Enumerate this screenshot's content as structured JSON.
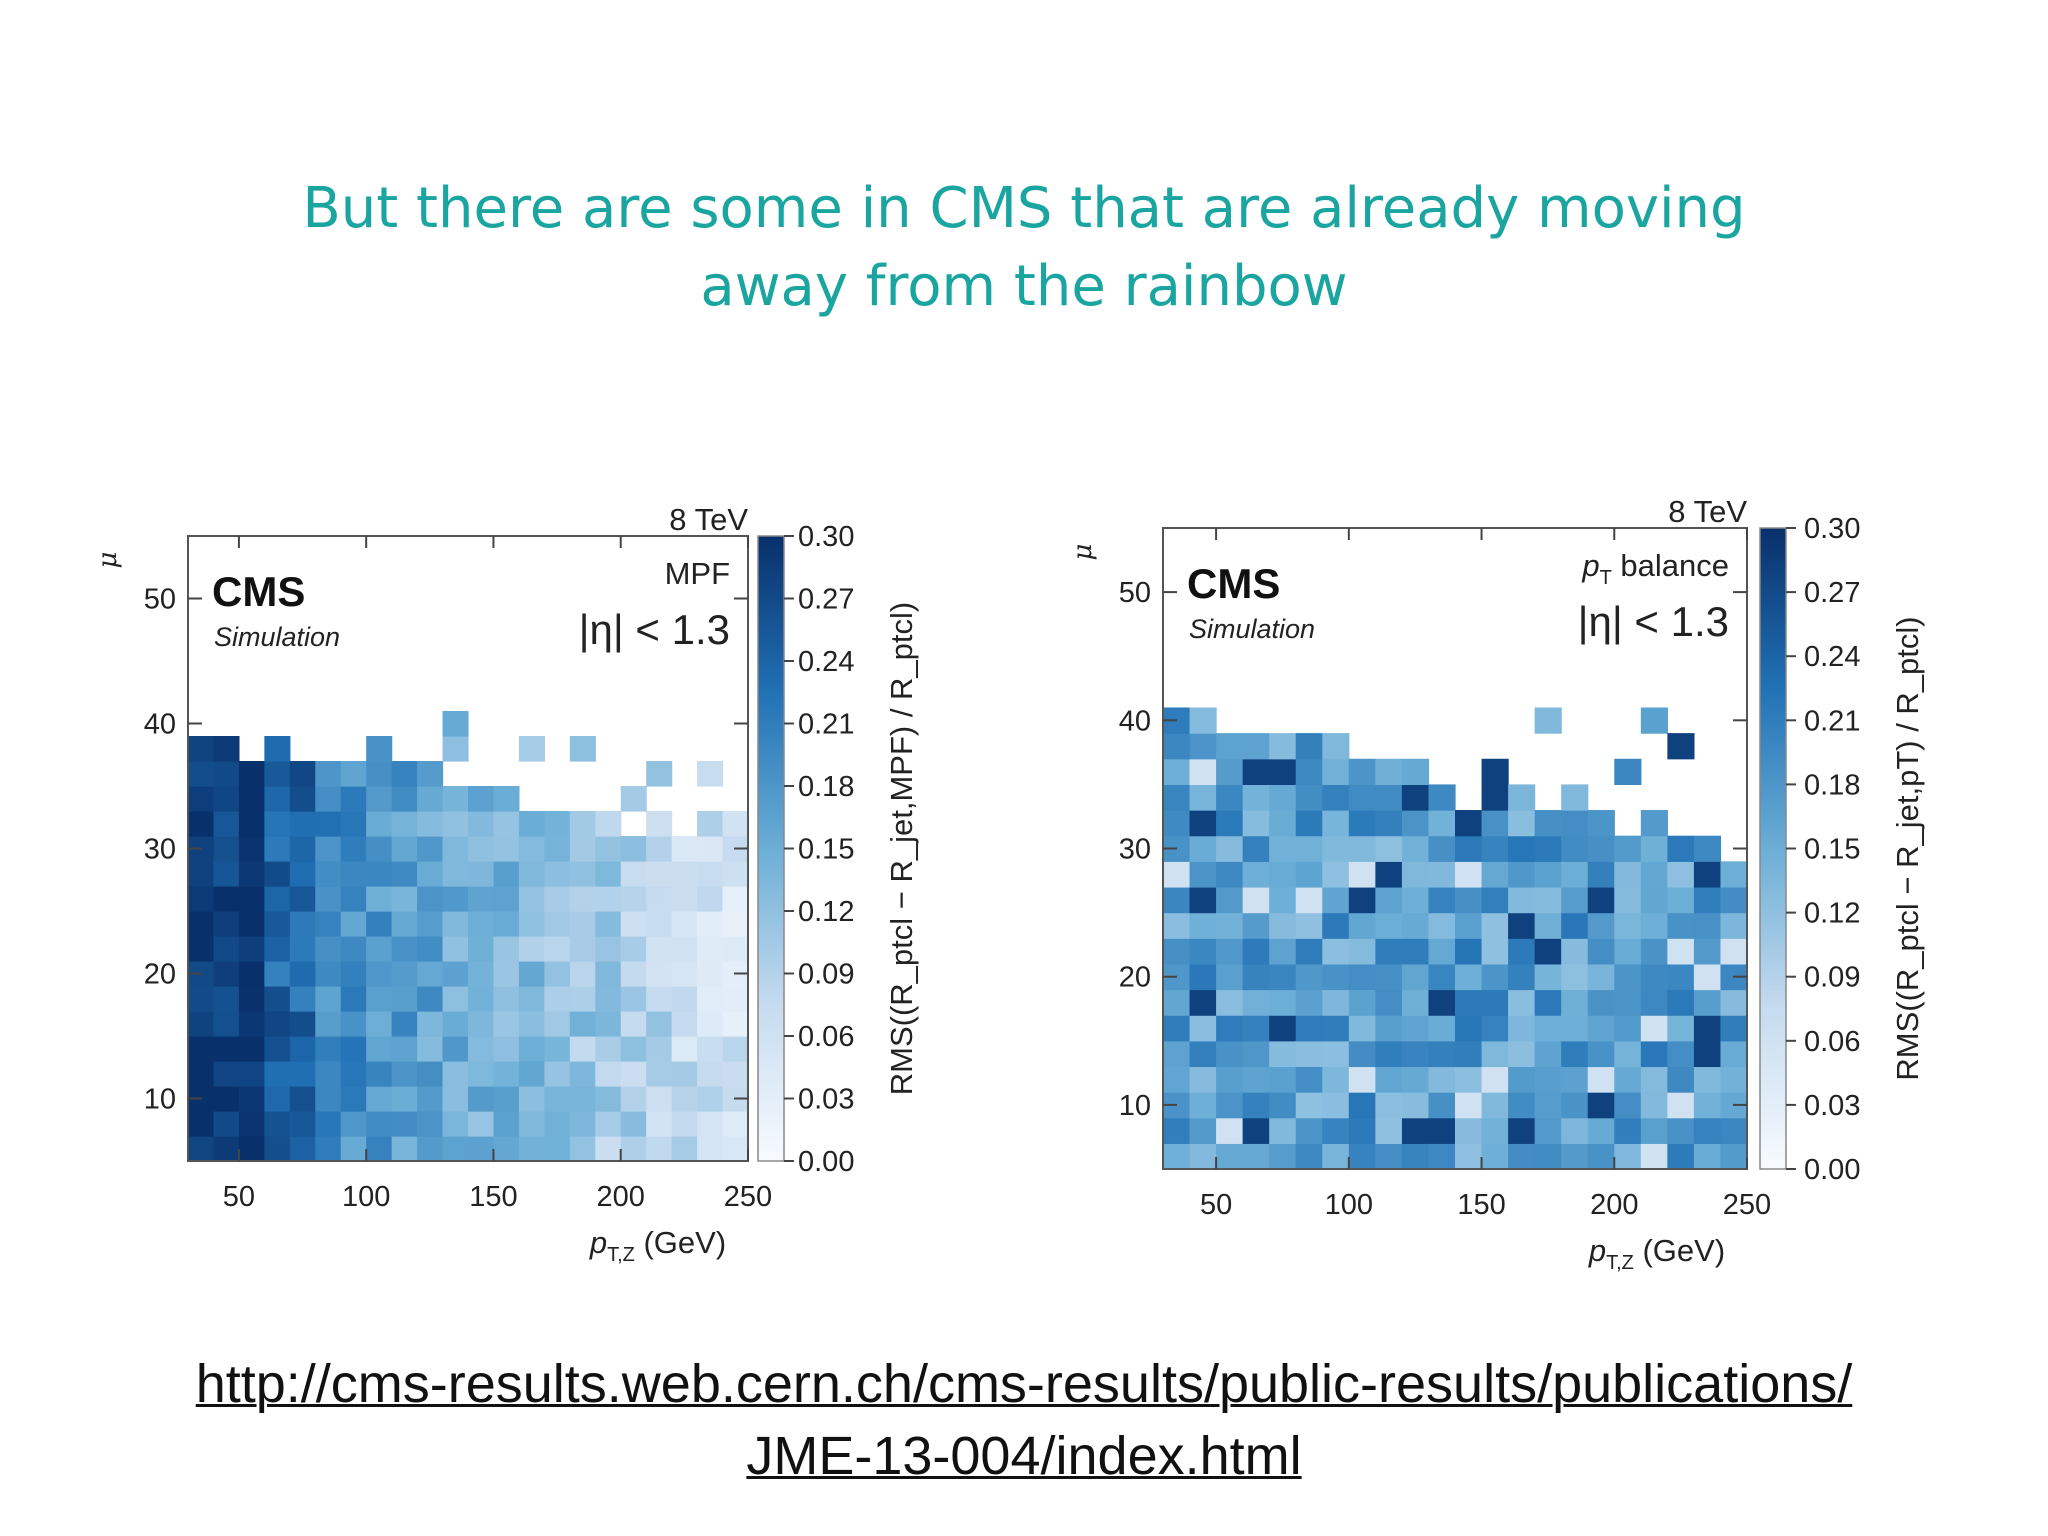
{
  "slide": {
    "title_line1": "But there are some in CMS that are already moving",
    "title_line2": "away from the rainbow",
    "link_line1": "http://cms-results.web.cern.ch/cms-results/public-results/publications/",
    "link_line2": "JME-13-004/index.html",
    "title_color": "#1aa5a0"
  },
  "chart_data": [
    {
      "type": "heatmap",
      "experiment": "CMS",
      "subtitle": "Simulation",
      "energy": "8 TeV",
      "method": "MPF",
      "eta_cut": "|η| < 1.3",
      "xlabel": "p_T,Z (GeV)",
      "ylabel": "μ",
      "zlabel": "RMS((R_ptcl − R_jet,MPF) / R_ptcl)",
      "xlim": [
        30,
        250
      ],
      "ylim": [
        5,
        55
      ],
      "zlim": [
        0,
        0.3
      ],
      "xticks": [
        50,
        100,
        150,
        200,
        250
      ],
      "yticks": [
        10,
        20,
        30,
        40,
        50
      ],
      "zticks": [
        "0.00",
        "0.03",
        "0.06",
        "0.09",
        "0.12",
        "0.15",
        "0.18",
        "0.21",
        "0.24",
        "0.27",
        "0.30"
      ],
      "colormap": "Blues",
      "colormap_colors": [
        "#f7fbff",
        "#c6dbef",
        "#6baed6",
        "#2171b5",
        "#08306b"
      ],
      "grid": false,
      "bins": {
        "x_start": 30,
        "x_step": 10,
        "x_count": 22,
        "y_start": 5,
        "y_step": 2,
        "y_count": 18
      },
      "trend": "RMS near 0.30 for p_T,Z below ~70 GeV, decreasing to ~0.05 at 250 GeV"
    },
    {
      "type": "heatmap",
      "experiment": "CMS",
      "subtitle": "Simulation",
      "energy": "8 TeV",
      "method": "p_T balance",
      "eta_cut": "|η| < 1.3",
      "xlabel": "p_T,Z (GeV)",
      "ylabel": "μ",
      "zlabel": "RMS((R_ptcl − R_jet,pT) / R_ptcl)",
      "xlim": [
        30,
        250
      ],
      "ylim": [
        5,
        55
      ],
      "zlim": [
        0,
        0.3
      ],
      "xticks": [
        50,
        100,
        150,
        200,
        250
      ],
      "yticks": [
        10,
        20,
        30,
        40,
        50
      ],
      "zticks": [
        "0.00",
        "0.03",
        "0.06",
        "0.09",
        "0.12",
        "0.15",
        "0.18",
        "0.21",
        "0.24",
        "0.27",
        "0.30"
      ],
      "colormap": "Blues",
      "colormap_colors": [
        "#f7fbff",
        "#c6dbef",
        "#6baed6",
        "#2171b5",
        "#08306b"
      ],
      "grid": false,
      "bins": {
        "x_start": 30,
        "x_step": 10,
        "x_count": 22,
        "y_start": 5,
        "y_step": 2,
        "y_count": 18
      },
      "trend": "RMS fairly uniform around 0.15-0.24 across the full p_T,Z range"
    }
  ]
}
